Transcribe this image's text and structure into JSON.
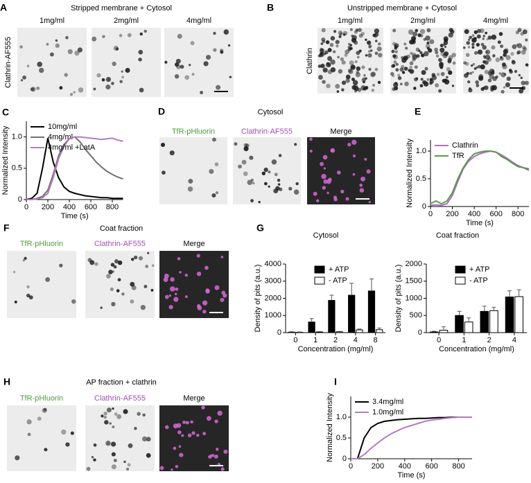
{
  "panels": [
    {
      "label": "A",
      "title": "Stripped membrane + Cytosol",
      "ylabel": "Clathrin-AF555",
      "columns": [
        {
          "text": "1mg/ml",
          "color": "#000000"
        },
        {
          "text": "2mg/ml",
          "color": "#000000"
        },
        {
          "text": "4mg/ml",
          "color": "#000000"
        }
      ]
    },
    {
      "label": "B",
      "title": "Unstripped membrane + Cytosol",
      "ylabel": "Clathrin",
      "columns": [
        {
          "text": "1mg/ml",
          "color": "#000000"
        },
        {
          "text": "2mg/ml",
          "color": "#000000"
        },
        {
          "text": "4mg/ml",
          "color": "#000000"
        }
      ]
    },
    {
      "label": "D",
      "title": "Cytosol",
      "columns": [
        {
          "text": "TfR-pHluorin",
          "color": "#4f9a3e"
        },
        {
          "text": "Clathrin-AF555",
          "color": "#a24fb0"
        },
        {
          "text": "Merge",
          "color": "#000000"
        }
      ]
    },
    {
      "label": "F",
      "title": "Coat fraction",
      "columns": [
        {
          "text": "TfR-pHluorin",
          "color": "#4f9a3e"
        },
        {
          "text": "Clathrin-AF555",
          "color": "#a24fb0"
        },
        {
          "text": "Merge",
          "color": "#000000"
        }
      ]
    },
    {
      "label": "H",
      "title": "AP fraction + clathrin",
      "columns": [
        {
          "text": "TfR-pHluorin",
          "color": "#4f9a3e"
        },
        {
          "text": "Clathrin-AF555",
          "color": "#a24fb0"
        },
        {
          "text": "Merge",
          "color": "#000000"
        }
      ]
    }
  ],
  "chart_data": [
    {
      "type": "line",
      "label": "C",
      "xlabel": "Time (s)",
      "ylabel": "Normalized Intensity",
      "legend": "upper left",
      "x": [
        0,
        50,
        100,
        150,
        200,
        250,
        300,
        350,
        400,
        450,
        500,
        550,
        600,
        650,
        700,
        750,
        800,
        850,
        900
      ],
      "series": [
        {
          "name": "10mg/ml",
          "color": "#000000",
          "values": [
            0,
            0.02,
            0.1,
            0.5,
            0.98,
            0.6,
            0.35,
            0.2,
            0.13,
            0.1,
            0.08,
            0.06,
            0.05,
            0.04,
            0.03,
            0.03,
            0.02,
            0.02,
            0.02
          ]
        },
        {
          "name": "4mg/ml",
          "color": "#707070",
          "values": [
            0,
            0,
            0.02,
            0.05,
            0.15,
            0.4,
            0.7,
            0.88,
            0.97,
            1.0,
            0.92,
            0.8,
            0.7,
            0.6,
            0.52,
            0.45,
            0.4,
            0.36,
            0.33
          ]
        },
        {
          "name": "4mg/ml +LatA",
          "color": "#b47cc0",
          "values": [
            0,
            0,
            0.01,
            0.03,
            0.1,
            0.35,
            0.65,
            0.85,
            0.97,
            1.0,
            1.0,
            0.99,
            0.98,
            0.97,
            0.96,
            0.97,
            0.98,
            0.95,
            0.93
          ]
        }
      ],
      "xlim": [
        0,
        900
      ],
      "xticks": [
        0,
        200,
        400,
        600,
        800
      ],
      "ylim": [
        0,
        1.25
      ],
      "yticks": [
        0,
        0.5,
        {
          "value": 1,
          "label": "1.0"
        }
      ]
    },
    {
      "type": "line",
      "label": "E",
      "xlabel": "Time (s)",
      "ylabel": "Normalized Intensity",
      "legend": "upper left",
      "x": [
        0,
        50,
        100,
        150,
        200,
        250,
        300,
        350,
        400,
        450,
        500,
        550,
        600,
        650,
        700,
        750,
        800,
        850,
        900
      ],
      "series": [
        {
          "name": "Clathrin",
          "color": "#b06cbc",
          "values": [
            0.02,
            0.03,
            0.02,
            0.05,
            0.2,
            0.45,
            0.68,
            0.82,
            0.9,
            0.95,
            0.98,
            1.0,
            0.98,
            0.93,
            0.87,
            0.8,
            0.74,
            0.7,
            0.65
          ]
        },
        {
          "name": "TfR",
          "color": "#5a9a4e",
          "values": [
            0.05,
            0.1,
            0.05,
            0.1,
            0.25,
            0.5,
            0.7,
            0.85,
            0.95,
            0.98,
            1.0,
            1.0,
            0.98,
            0.9,
            0.85,
            0.78,
            0.72,
            0.7,
            0.68
          ]
        }
      ],
      "xlim": [
        0,
        900
      ],
      "xticks": [
        0,
        200,
        400,
        600,
        800
      ],
      "ylim": [
        0,
        1.2
      ],
      "yticks": [
        0,
        0.5,
        {
          "value": 1,
          "label": "1.0"
        }
      ]
    },
    {
      "type": "bar",
      "label": "G",
      "title": "Cytosol",
      "xlabel": "Concentration (mg/ml)",
      "ylabel": "Density of pits (a.u.)",
      "legend": "upper left",
      "categories": [
        "0",
        "1",
        "2",
        "4",
        "8"
      ],
      "series": [
        {
          "name": "+ ATP",
          "color": "#000000",
          "values": [
            30,
            620,
            1880,
            2180,
            2430
          ],
          "errors": [
            20,
            200,
            300,
            700,
            700
          ]
        },
        {
          "name": "- ATP",
          "color": "#ffffff",
          "values": [
            20,
            40,
            50,
            160,
            170
          ],
          "errors": [
            20,
            20,
            20,
            50,
            100
          ]
        }
      ],
      "ylim": [
        0,
        4000
      ],
      "yticks": [
        0,
        1000,
        2000,
        3000,
        4000
      ]
    },
    {
      "type": "bar",
      "title": "Coat fraction",
      "xlabel": "Concentration (mg/ml)",
      "ylabel": "Density of pits (a.u.)",
      "legend": "upper left",
      "categories": [
        "0",
        "1",
        "2",
        "4"
      ],
      "series": [
        {
          "name": "+ ATP",
          "color": "#000000",
          "values": [
            20,
            500,
            620,
            1040
          ],
          "errors": [
            20,
            120,
            150,
            180
          ]
        },
        {
          "name": "- ATP",
          "color": "#ffffff",
          "values": [
            70,
            310,
            640,
            1050
          ],
          "errors": [
            100,
            120,
            100,
            200
          ]
        }
      ],
      "ylim": [
        0,
        2000
      ],
      "yticks": [
        0,
        500,
        1000,
        1500,
        2000
      ]
    },
    {
      "type": "line",
      "label": "I",
      "xlabel": "Time (s)",
      "ylabel": "Normalized Intensity",
      "legend": "upper left",
      "x": [
        0,
        50,
        100,
        150,
        200,
        250,
        300,
        350,
        400,
        450,
        500,
        550,
        600,
        650,
        700,
        750,
        800,
        850,
        900
      ],
      "series": [
        {
          "name": "3.4mg/ml",
          "color": "#000000",
          "values": [
            0,
            0,
            0.5,
            0.75,
            0.85,
            0.9,
            0.92,
            0.94,
            0.95,
            0.96,
            0.97,
            0.97,
            0.98,
            0.99,
            0.99,
            1.0,
            1.0,
            1.0,
            1.0
          ]
        },
        {
          "name": "1.0mg/ml",
          "color": "#b47cc0",
          "values": [
            0,
            0,
            0.1,
            0.25,
            0.38,
            0.5,
            0.6,
            0.68,
            0.75,
            0.8,
            0.85,
            0.9,
            0.93,
            0.95,
            0.97,
            0.99,
            1.0,
            1.0,
            1.0
          ]
        }
      ],
      "xlim": [
        0,
        900
      ],
      "xticks": [
        0,
        200,
        400,
        600,
        800
      ],
      "ylim": [
        0,
        1.5
      ],
      "yticks": [
        0,
        0.5,
        {
          "value": 1,
          "label": "1.0"
        }
      ]
    }
  ]
}
